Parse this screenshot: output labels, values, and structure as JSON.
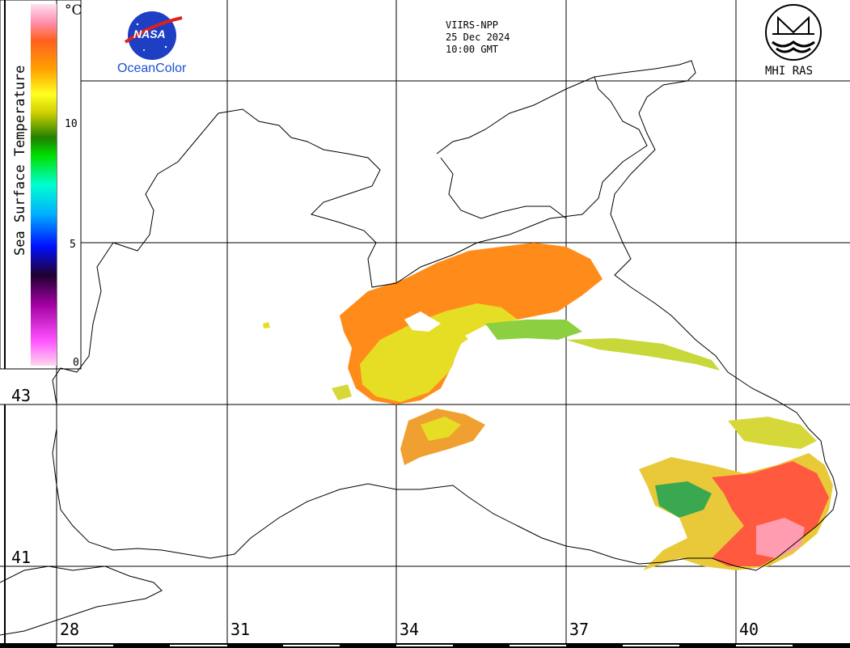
{
  "header": {
    "sensor": "VIIRS-NPP",
    "date": "25 Dec 2024",
    "time": "10:00 GMT"
  },
  "logos": {
    "nasa_text": "NASA",
    "oceancolor": "OceanColor",
    "mhi": "MHI RAS"
  },
  "legend": {
    "title": "Sea Surface Temperature",
    "unit": "°C",
    "ticks": [
      "10",
      "5",
      "0"
    ],
    "colors": [
      "#ffd6ef",
      "#ff52ff",
      "#a000a0",
      "#200030",
      "#0010ff",
      "#00b0ff",
      "#00ffd0",
      "#00e000",
      "#208000",
      "#d0d000",
      "#ffff20",
      "#ffa000",
      "#ff6020",
      "#ff3030",
      "#ff90b0",
      "#ffe0f0"
    ]
  },
  "latitudes": [
    "43",
    "41"
  ],
  "longitudes": [
    "28",
    "31",
    "34",
    "37",
    "40"
  ],
  "colors": {
    "sst_warm": "#ff7f1a",
    "sst_mid": "#e8e020",
    "sst_hot": "#ff5a5a",
    "sst_cool": "#2aa040"
  }
}
